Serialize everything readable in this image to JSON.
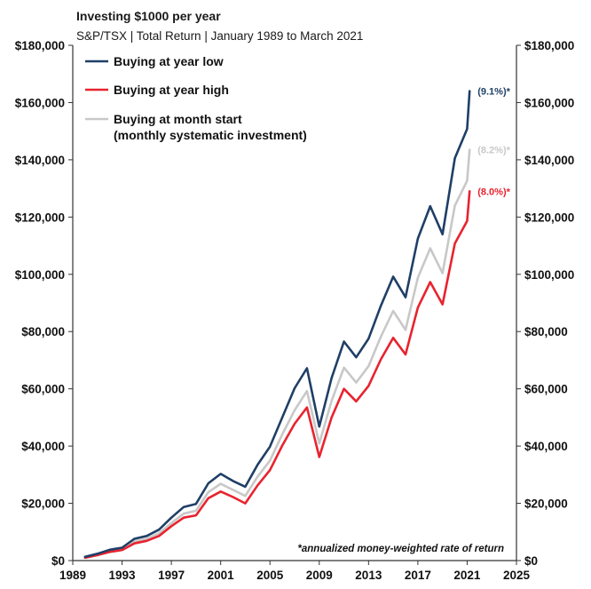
{
  "chart_data": {
    "type": "line",
    "title": "Investing $1000 per year",
    "subtitle": "S&P/TSX | Total Return | January 1989 to March 2021",
    "footnote": "*annualized money-weighted rate of return",
    "xlim": [
      1989,
      2025
    ],
    "xticks": [
      1989,
      1993,
      1997,
      2001,
      2005,
      2009,
      2013,
      2017,
      2021,
      2025
    ],
    "ylim": [
      0,
      180000
    ],
    "yticks": [
      0,
      20000,
      40000,
      60000,
      80000,
      100000,
      120000,
      140000,
      160000,
      180000
    ],
    "ytick_labels": [
      "$0",
      "$20,000",
      "$40,000",
      "$60,000",
      "$80,000",
      "$100,000",
      "$120,000",
      "$140,000",
      "$160,000",
      "$180,000"
    ],
    "legend_position": "top-left",
    "series": [
      {
        "name": "Buying at year low",
        "color": "#1f3f66",
        "rate_label": "(9.1%)*",
        "points": [
          [
            1990,
            1300
          ],
          [
            1991,
            2400
          ],
          [
            1992,
            3800
          ],
          [
            1993,
            4500
          ],
          [
            1994,
            7600
          ],
          [
            1995,
            8600
          ],
          [
            1996,
            10800
          ],
          [
            1997,
            15000
          ],
          [
            1998,
            18700
          ],
          [
            1999,
            19800
          ],
          [
            2000,
            27000
          ],
          [
            2001,
            30300
          ],
          [
            2002,
            27800
          ],
          [
            2003,
            25800
          ],
          [
            2004,
            33500
          ],
          [
            2005,
            39800
          ],
          [
            2006,
            50000
          ],
          [
            2007,
            60200
          ],
          [
            2008,
            67200
          ],
          [
            2009,
            46800
          ],
          [
            2010,
            63800
          ],
          [
            2011,
            76500
          ],
          [
            2012,
            71000
          ],
          [
            2013,
            77500
          ],
          [
            2014,
            89000
          ],
          [
            2015,
            99200
          ],
          [
            2016,
            92000
          ],
          [
            2017,
            112500
          ],
          [
            2018,
            123800
          ],
          [
            2019,
            114000
          ],
          [
            2020,
            140600
          ],
          [
            2021,
            150800
          ],
          [
            2021.2,
            164000
          ]
        ]
      },
      {
        "name": "Buying at year high",
        "color": "#e8232f",
        "rate_label": "(8.0%)*",
        "points": [
          [
            1990,
            1000
          ],
          [
            1991,
            1900
          ],
          [
            1992,
            3000
          ],
          [
            1993,
            3700
          ],
          [
            1994,
            6000
          ],
          [
            1995,
            6900
          ],
          [
            1996,
            8600
          ],
          [
            1997,
            12000
          ],
          [
            1998,
            15000
          ],
          [
            1999,
            15800
          ],
          [
            2000,
            21800
          ],
          [
            2001,
            24100
          ],
          [
            2002,
            22200
          ],
          [
            2003,
            20000
          ],
          [
            2004,
            26300
          ],
          [
            2005,
            31600
          ],
          [
            2006,
            40200
          ],
          [
            2007,
            47800
          ],
          [
            2008,
            53500
          ],
          [
            2009,
            36200
          ],
          [
            2010,
            50000
          ],
          [
            2011,
            60000
          ],
          [
            2012,
            55600
          ],
          [
            2013,
            61000
          ],
          [
            2014,
            70300
          ],
          [
            2015,
            77800
          ],
          [
            2016,
            72000
          ],
          [
            2017,
            88400
          ],
          [
            2018,
            97300
          ],
          [
            2019,
            89500
          ],
          [
            2020,
            110800
          ],
          [
            2021,
            118600
          ],
          [
            2021.2,
            129000
          ]
        ]
      },
      {
        "name": "Buying at month start\n(monthly systematic investment)",
        "color": "#c8c8c8",
        "rate_label": "(8.2%)*",
        "points": [
          [
            1990,
            1100
          ],
          [
            1991,
            2100
          ],
          [
            1992,
            3300
          ],
          [
            1993,
            4000
          ],
          [
            1994,
            6700
          ],
          [
            1995,
            7600
          ],
          [
            1996,
            9500
          ],
          [
            1997,
            13100
          ],
          [
            1998,
            16400
          ],
          [
            1999,
            17400
          ],
          [
            2000,
            23900
          ],
          [
            2001,
            26800
          ],
          [
            2002,
            24700
          ],
          [
            2003,
            22600
          ],
          [
            2004,
            29300
          ],
          [
            2005,
            34900
          ],
          [
            2006,
            44100
          ],
          [
            2007,
            52500
          ],
          [
            2008,
            59200
          ],
          [
            2009,
            40900
          ],
          [
            2010,
            55800
          ],
          [
            2011,
            67400
          ],
          [
            2012,
            62200
          ],
          [
            2013,
            67900
          ],
          [
            2014,
            78200
          ],
          [
            2015,
            87200
          ],
          [
            2016,
            80600
          ],
          [
            2017,
            98800
          ],
          [
            2018,
            109100
          ],
          [
            2019,
            100400
          ],
          [
            2020,
            124000
          ],
          [
            2021,
            132700
          ],
          [
            2021.2,
            143500
          ]
        ]
      }
    ]
  }
}
